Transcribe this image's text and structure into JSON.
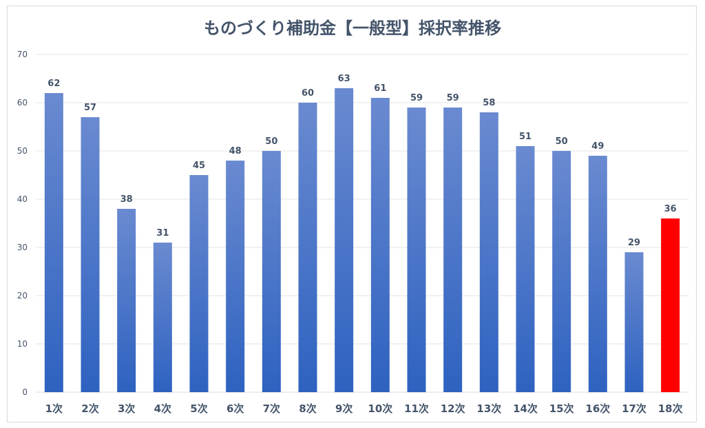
{
  "chart_data": {
    "type": "bar",
    "title": "ものづくり補助金【一般型】採択率推移",
    "xlabel": "",
    "ylabel": "",
    "ylim": [
      0,
      70
    ],
    "yticks": [
      0,
      10,
      20,
      30,
      40,
      50,
      60,
      70
    ],
    "grid": true,
    "legend": "none",
    "categories": [
      "1次",
      "2次",
      "3次",
      "4次",
      "5次",
      "6次",
      "7次",
      "8次",
      "9次",
      "10次",
      "11次",
      "12次",
      "13次",
      "14次",
      "15次",
      "16次",
      "17次",
      "18次"
    ],
    "values": [
      62,
      57,
      38,
      31,
      45,
      48,
      50,
      60,
      63,
      61,
      59,
      59,
      58,
      51,
      50,
      49,
      29,
      36
    ],
    "highlight_index": 17,
    "colors": {
      "bar_top": "#6a8ad0",
      "bar_bottom": "#2e62c0",
      "highlight": "#ff0000",
      "text": "#44546a"
    }
  }
}
